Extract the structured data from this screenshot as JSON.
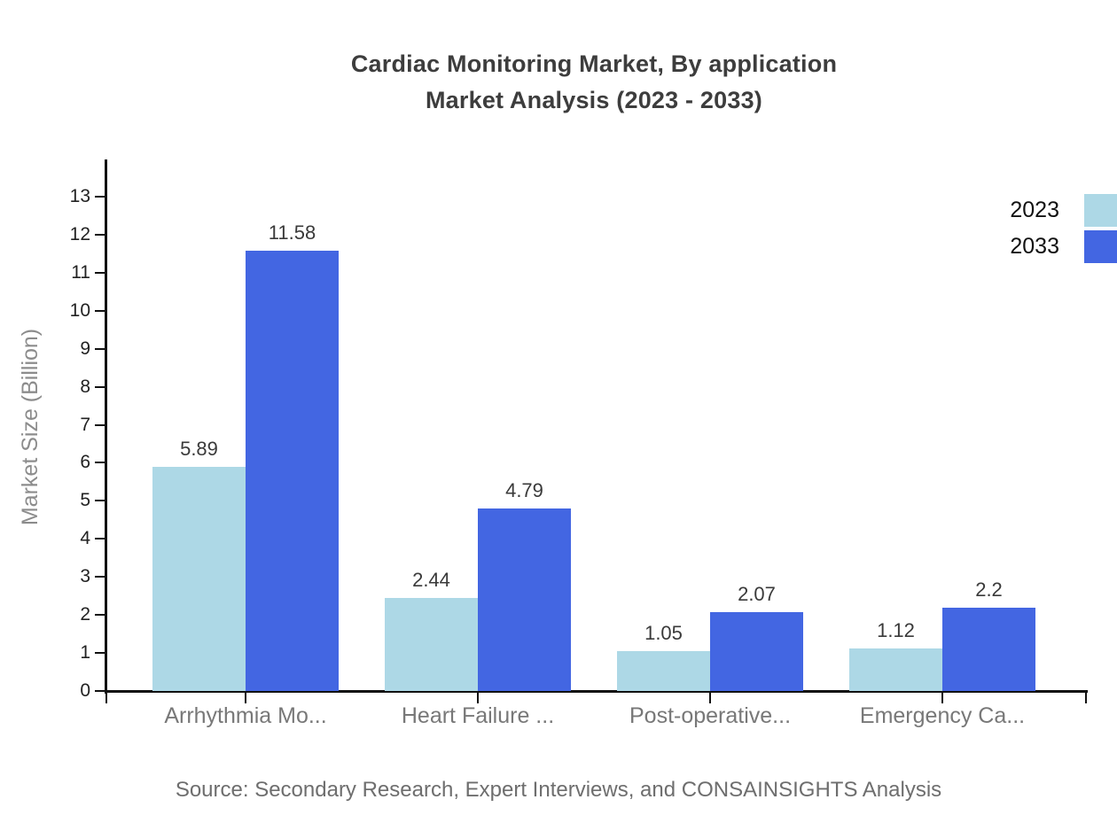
{
  "title": {
    "line1": "Cardiac Monitoring Market, By application",
    "line2": "Market Analysis (2023 - 2033)"
  },
  "source": "Source: Secondary Research, Expert Interviews, and CONSAINSIGHTS Analysis",
  "legend": {
    "items": [
      {
        "label": "2023",
        "color": "#add8e6"
      },
      {
        "label": "2033",
        "color": "#4366e2"
      }
    ]
  },
  "chart_data": {
    "type": "bar",
    "title": "Cardiac Monitoring Market, By application Market Analysis (2023 - 2033)",
    "categories": [
      "Arrhythmia Mo...",
      "Heart Failure ...",
      "Post-operative...",
      "Emergency Ca..."
    ],
    "series": [
      {
        "name": "2023",
        "color": "#add8e6",
        "values": [
          5.89,
          2.44,
          1.05,
          1.12
        ]
      },
      {
        "name": "2033",
        "color": "#4366e2",
        "values": [
          11.58,
          4.79,
          2.07,
          2.2
        ]
      }
    ],
    "xlabel": "",
    "ylabel": "Market Size (Billion)",
    "ylim": [
      0,
      13
    ],
    "yticks": [
      0,
      1,
      2,
      3,
      4,
      5,
      6,
      7,
      8,
      9,
      10,
      11,
      12,
      13
    ],
    "grid": false,
    "value_labels": true,
    "legend_position": "top-right",
    "colors": {
      "axis": "#111111",
      "value_label": "#3a3a3a",
      "tick_label": "#222222",
      "category_label": "#787878"
    }
  }
}
